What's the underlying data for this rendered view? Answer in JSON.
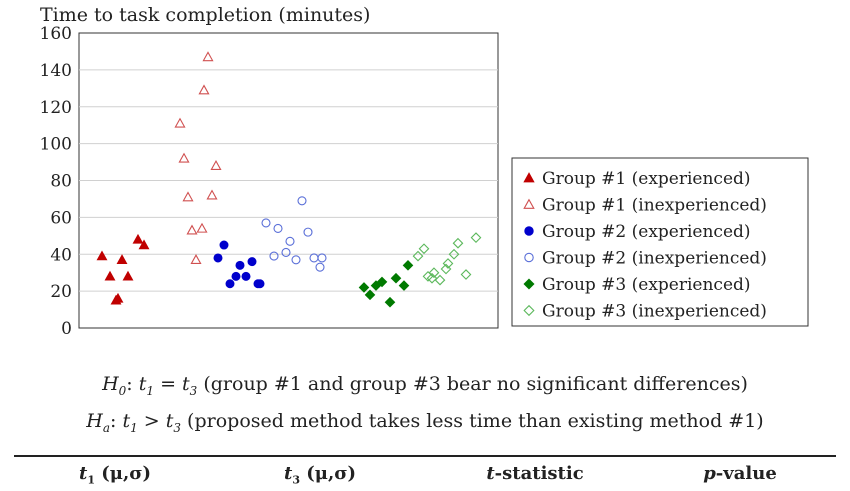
{
  "chart_data": {
    "type": "scatter",
    "title": "Time to task completion (minutes)",
    "ylim": [
      0,
      160
    ],
    "yticks": [
      "0",
      "20",
      "40",
      "60",
      "80",
      "100",
      "120",
      "140",
      "160"
    ],
    "grid": true,
    "legend_position": "right",
    "series": [
      {
        "name": "Group #1 (experienced)",
        "marker": "triangle-filled",
        "color": "#c00000",
        "x": [
          1,
          2,
          3,
          4,
          5,
          6,
          7,
          8
        ],
        "y": [
          39,
          28,
          15,
          37,
          28,
          16,
          48,
          45
        ]
      },
      {
        "name": "Group #1 (inexperienced)",
        "marker": "triangle-open",
        "color": "#d05050",
        "x": [
          1,
          2,
          3,
          4,
          5,
          6,
          7,
          8,
          9,
          10
        ],
        "y": [
          92,
          111,
          71,
          53,
          37,
          54,
          129,
          147,
          72,
          88
        ]
      },
      {
        "name": "Group #2 (experienced)",
        "marker": "circle-filled",
        "color": "#0000cc",
        "x": [
          1,
          2,
          3,
          4,
          5,
          6,
          7,
          8,
          9
        ],
        "y": [
          38,
          45,
          24,
          28,
          34,
          28,
          36,
          24,
          24
        ]
      },
      {
        "name": "Group #2 (inexperienced)",
        "marker": "circle-open",
        "color": "#5a6fd8",
        "x": [
          1,
          2,
          3,
          4,
          5,
          6,
          7,
          8,
          9,
          10,
          11
        ],
        "y": [
          57,
          39,
          54,
          41,
          47,
          37,
          69,
          52,
          38,
          33,
          38
        ]
      },
      {
        "name": "Group #3 (experienced)",
        "marker": "diamond-filled",
        "color": "#007a00",
        "x": [
          1,
          2,
          3,
          4,
          5,
          6,
          7,
          8
        ],
        "y": [
          22,
          18,
          23,
          25,
          14,
          27,
          23,
          34
        ]
      },
      {
        "name": "Group #3 (inexperienced)",
        "marker": "diamond-open",
        "color": "#5cb85c",
        "x": [
          1,
          2,
          3,
          4,
          5,
          6,
          7,
          8,
          9,
          10,
          11,
          12
        ],
        "y": [
          39,
          43,
          28,
          30,
          26,
          35,
          40,
          46,
          29,
          49,
          27,
          32
        ]
      }
    ]
  },
  "hypotheses": {
    "h0": {
      "label": "H",
      "label_sub": "0",
      "lhs": "t",
      "lhs_sub": "1",
      "op": " = ",
      "rhs": "t",
      "rhs_sub": "3",
      "text": " (group #1 and group #3 bear no significant differences)"
    },
    "ha": {
      "label": "H",
      "label_sub": "a",
      "lhs": "t",
      "lhs_sub": "1",
      "op": " > ",
      "rhs": "t",
      "rhs_sub": "3",
      "text": " (proposed method takes less time than existing method #1)"
    }
  },
  "table": {
    "headers": [
      {
        "italic": "t",
        "sub": "1",
        "rest": " (μ,σ)"
      },
      {
        "italic": "t",
        "sub": "3",
        "rest": " (μ,σ)"
      },
      {
        "italic": "t",
        "sub": "",
        "rest": "-statistic"
      },
      {
        "italic": "p",
        "sub": "",
        "rest": "-value"
      }
    ]
  }
}
